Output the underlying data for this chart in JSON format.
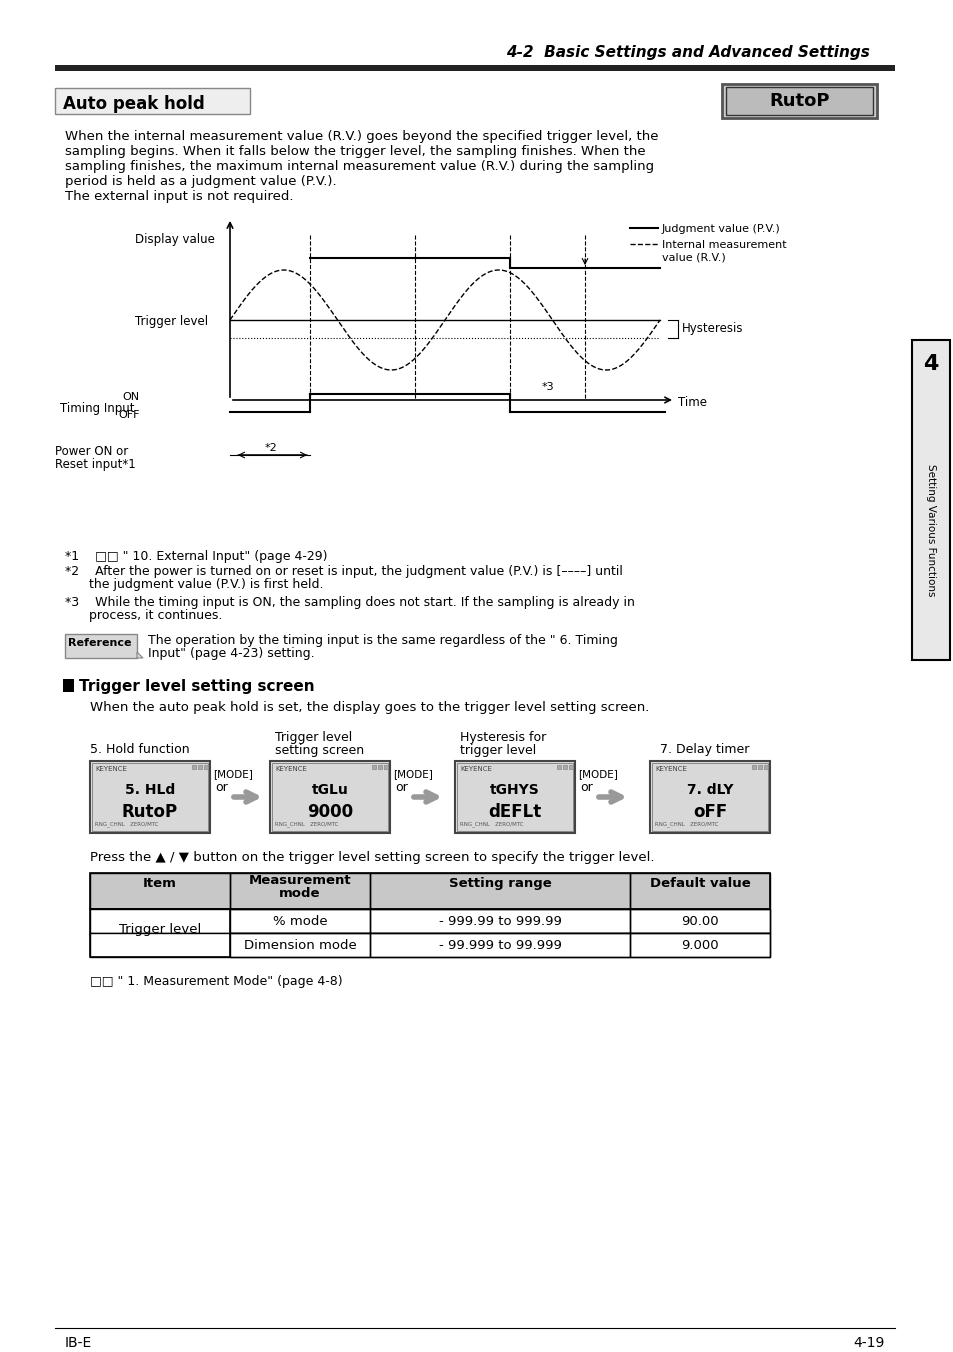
{
  "page_title": "4-2  Basic Settings and Advanced Settings",
  "section_title": "Auto peak hold",
  "lcd_label": "RutoP",
  "intro_text_lines": [
    "When the internal measurement value (R.V.) goes beyond the specified trigger level, the",
    "sampling begins. When it falls below the trigger level, the sampling finishes. When the",
    "sampling finishes, the maximum internal measurement value (R.V.) during the sampling",
    "period is held as a judgment value (P.V.).",
    "The external input is not required."
  ],
  "chart_labels": {
    "display_value": "Display value",
    "trigger_level": "Trigger level",
    "timing_input": "Timing Input",
    "on": "ON",
    "off": "OFF",
    "power_on": "Power ON or",
    "reset_input": "Reset input*1",
    "hysteresis": "Hysteresis",
    "time": "Time",
    "judgment_pv": "Judgment value (P.V.)",
    "internal_rv_1": "Internal measurement",
    "internal_rv_2": "value (R.V.)",
    "star2": "*2",
    "star3": "*3"
  },
  "footnote1": "*1    □□ \" 10. External Input\" (page 4-29)",
  "footnote2a": "*2    After the power is turned on or reset is input, the judgment value (P.V.) is [––––] until",
  "footnote2b": "      the judgment value (P.V.) is first held.",
  "footnote3a": "*3    While the timing input is ON, the sampling does not start. If the sampling is already in",
  "footnote3b": "      process, it continues.",
  "ref_label": "Reference",
  "ref_text1": "The operation by the timing input is the same regardless of the \" 6. Timing",
  "ref_text2": "Input\" (page 4-23) setting.",
  "trigger_section_title": "Trigger level setting screen",
  "trigger_intro": "When the auto peak hold is set, the display goes to the trigger level setting screen.",
  "label_hold": "5. Hold function",
  "label_trig": "Trigger level",
  "label_trig2": "setting screen",
  "label_hys": "Hysteresis for",
  "label_hys2": "trigger level",
  "label_delay": "7. Delay timer",
  "screens": [
    {
      "line1": "5. HLd",
      "line2": "RutoP"
    },
    {
      "line1": "tGLu",
      "line2": "9000"
    },
    {
      "line1": "tGHYS",
      "line2": "dEFLt"
    },
    {
      "line1": "7. dLY",
      "line2": "oFF"
    }
  ],
  "press_text": "Press the ▲ / ▼ button on the trigger level setting screen to specify the trigger level.",
  "tbl_h1": "Item",
  "tbl_h2": "Measurement\nmode",
  "tbl_h3": "Setting range",
  "tbl_h4": "Default value",
  "tbl_r1c1": "Trigger level",
  "tbl_r1c2": "% mode",
  "tbl_r1c3": "- 999.99 to 999.99",
  "tbl_r1c4": "90.00",
  "tbl_r2c2": "Dimension mode",
  "tbl_r2c3": "- 99.999 to 99.999",
  "tbl_r2c4": "9.000",
  "bottom_ref": "□□ \" 1. Measurement Mode\" (page 4-8)",
  "footer_left": "IB-E",
  "footer_right": "4-19",
  "side_text": "Setting Various Functions",
  "tab_number": "4"
}
